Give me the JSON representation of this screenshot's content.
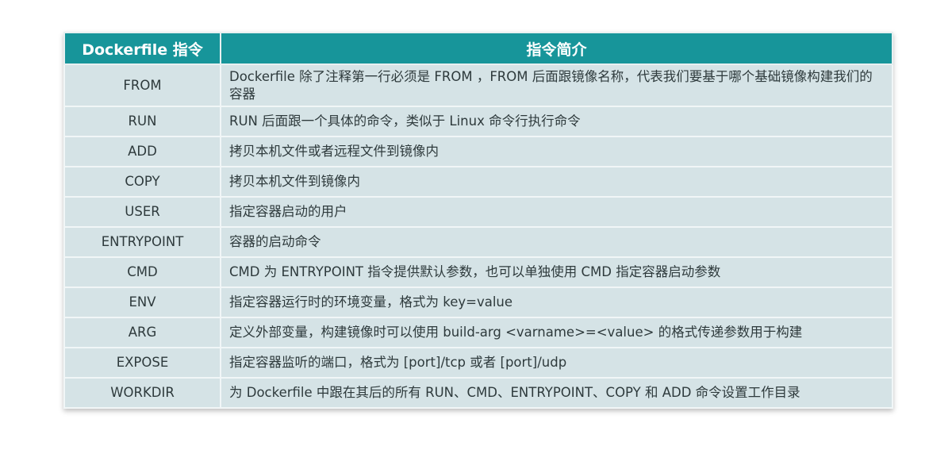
{
  "table": {
    "headers": [
      "Dockerfile 指令",
      "指令简介"
    ],
    "rows": [
      {
        "cmd": "FROM",
        "desc": "Dockerfile 除了注释第一行必须是 FROM ，FROM 后面跟镜像名称，代表我们要基于哪个基础镜像构建我们的容器"
      },
      {
        "cmd": "RUN",
        "desc": "RUN 后面跟一个具体的命令，类似于 Linux 命令行执行命令"
      },
      {
        "cmd": "ADD",
        "desc": "拷贝本机文件或者远程文件到镜像内"
      },
      {
        "cmd": "COPY",
        "desc": "拷贝本机文件到镜像内"
      },
      {
        "cmd": "USER",
        "desc": "指定容器启动的用户"
      },
      {
        "cmd": "ENTRYPOINT",
        "desc": "容器的启动命令"
      },
      {
        "cmd": "CMD",
        "desc": "CMD 为 ENTRYPOINT 指令提供默认参数，也可以单独使用 CMD 指定容器启动参数"
      },
      {
        "cmd": "ENV",
        "desc": "指定容器运行时的环境变量，格式为 key=value"
      },
      {
        "cmd": "ARG",
        "desc": "定义外部变量，构建镜像时可以使用 build-arg <varname>=<value> 的格式传递参数用于构建"
      },
      {
        "cmd": "EXPOSE",
        "desc": "指定容器监听的端口，格式为 [port]/tcp 或者 [port]/udp"
      },
      {
        "cmd": "WORKDIR",
        "desc": "为 Dockerfile 中跟在其后的所有 RUN、CMD、ENTRYPOINT、COPY 和 ADD 命令设置工作目录"
      }
    ]
  },
  "colors": {
    "header_bg": "#17959a",
    "cell_bg": "#d5e3e6"
  }
}
